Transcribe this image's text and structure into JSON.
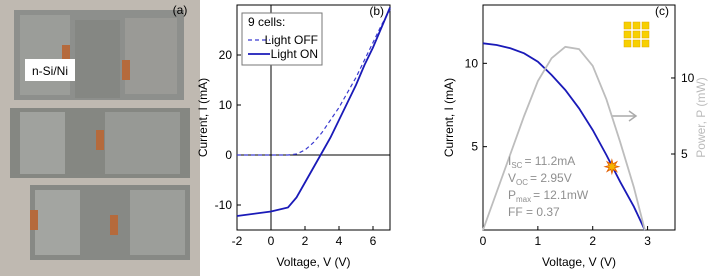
{
  "photo": {
    "label": "(a)",
    "text": "n-Si/Ni"
  },
  "chart_data": [
    {
      "type": "line",
      "title": "(b)",
      "x_label": "Voltage, V (V)",
      "y_label": "Current, I (mA)",
      "xlim": [
        -2,
        7
      ],
      "ylim": [
        -15,
        30
      ],
      "xticks": [
        -2,
        0,
        2,
        4,
        6
      ],
      "yticks": [
        -10,
        0,
        10,
        20
      ],
      "zero_lines": true,
      "legend_title": "9 cells:",
      "legend": "upper left",
      "series": [
        {
          "name": "Light OFF",
          "color": "#3a3ad0",
          "dash": true,
          "x": [
            -2,
            0,
            1,
            1.5,
            2,
            2.5,
            3,
            3.5,
            4,
            4.5,
            5,
            5.5,
            6,
            6.5,
            7
          ],
          "values": [
            0,
            0,
            0,
            0.2,
            1,
            2.5,
            4.5,
            7,
            9.5,
            12.5,
            15.5,
            19,
            22.5,
            26,
            29
          ]
        },
        {
          "name": "Light ON",
          "color": "#1a1ab8",
          "dash": false,
          "x": [
            -2,
            0,
            1,
            1.5,
            2,
            2.5,
            3,
            3.5,
            4,
            4.5,
            5,
            5.5,
            6,
            6.5,
            7
          ],
          "values": [
            -12.2,
            -11.3,
            -10.5,
            -8.5,
            -5.5,
            -2.5,
            0.5,
            3.5,
            7,
            10.5,
            14,
            18,
            21.5,
            25.5,
            29.5
          ]
        }
      ]
    },
    {
      "type": "line",
      "title": "(c)",
      "x_label": "Voltage, V (V)",
      "y_label": "Current, I (mA)",
      "y2_label": "Power, P (mW)",
      "xlim": [
        0,
        3.5
      ],
      "ylim": [
        0,
        13.5
      ],
      "y2lim": [
        0,
        14.8
      ],
      "xticks": [
        0,
        1,
        2,
        3
      ],
      "yticks": [
        5,
        10
      ],
      "y2ticks": [
        5,
        10
      ],
      "series": [
        {
          "color": "#1a1ab8",
          "x": [
            0,
            0.25,
            0.5,
            0.75,
            1.0,
            1.25,
            1.5,
            1.75,
            2.0,
            2.25,
            2.5,
            2.75,
            2.95
          ],
          "values": [
            11.2,
            11.1,
            10.9,
            10.6,
            10.1,
            9.3,
            8.4,
            7.3,
            6.0,
            4.5,
            2.9,
            1.4,
            0
          ]
        },
        {
          "color": "#bdbdbd",
          "axis": "y2",
          "x": [
            0,
            0.25,
            0.5,
            0.75,
            1.0,
            1.25,
            1.5,
            1.75,
            2.0,
            2.25,
            2.5,
            2.75,
            2.95
          ],
          "values": [
            0,
            2.5,
            5,
            7.5,
            9.8,
            11.3,
            12.05,
            11.9,
            10.8,
            8.6,
            5.8,
            2.8,
            0
          ]
        },
        {
          "color": "#f5b400",
          "marker": "star",
          "x": [
            2.35
          ],
          "values": [
            3.8
          ]
        }
      ],
      "annotations": [
        {
          "symbol": "I",
          "sub": "SC",
          "text": "= 11.2mA"
        },
        {
          "symbol": "V",
          "sub": "OC",
          "text": "= 2.95V"
        },
        {
          "symbol": "P",
          "sub": "max",
          "text": "= 12.1mW"
        },
        {
          "symbol": "FF = 0.37"
        }
      ]
    }
  ]
}
